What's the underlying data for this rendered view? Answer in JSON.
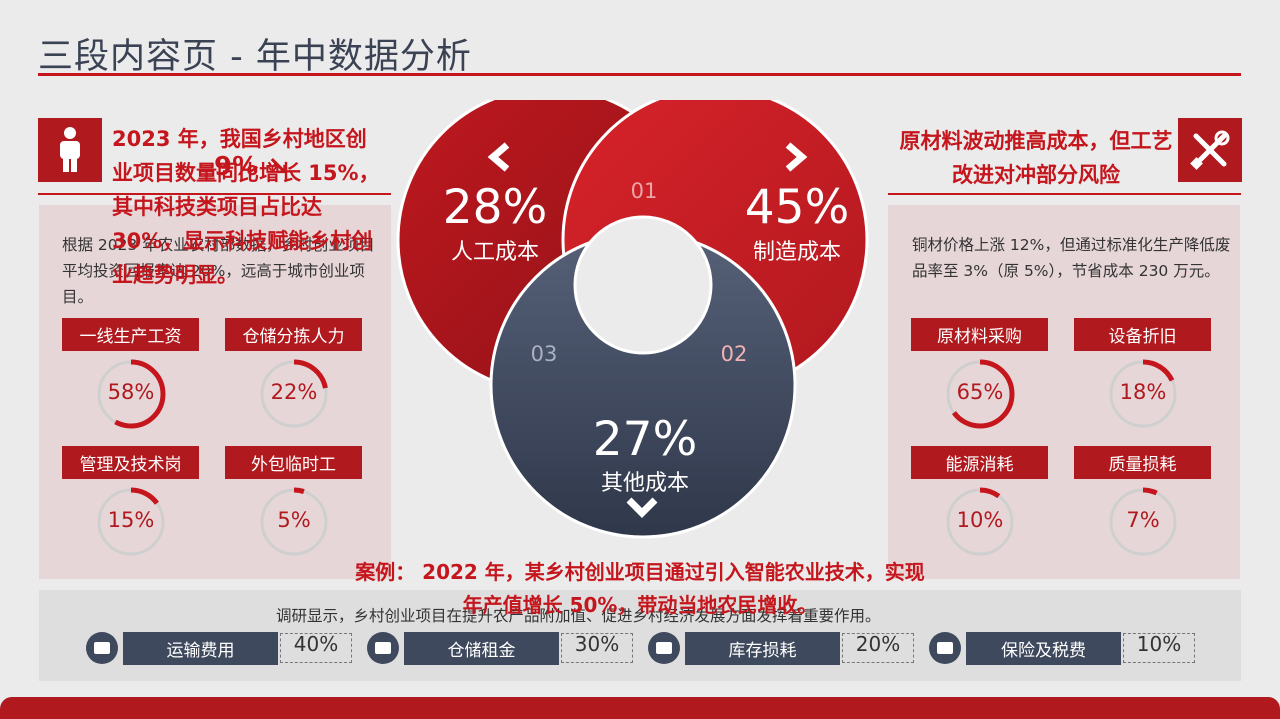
{
  "page": {
    "title": "三段内容页 - 年中数据分析"
  },
  "left": {
    "headline": "2023 年，我国乡村地区创业项目数量同比增长 15%，其中科技类项目占比达 30%，显示科技赋能乡村创业趋势明显。",
    "overlay_stat": "9% ↘",
    "body": "根据 2023 年农业农村部数据，乡村创业项目平均投资回报率达 20%，远高于城市创业项目。",
    "items": [
      {
        "label": "一线生产工资",
        "value": "58%",
        "pct": 58
      },
      {
        "label": "仓储分拣人力",
        "value": "22%",
        "pct": 22
      },
      {
        "label": "管理及技术岗",
        "value": "15%",
        "pct": 15
      },
      {
        "label": "外包临时工",
        "value": "5%",
        "pct": 5
      }
    ]
  },
  "right": {
    "headline": "原材料波动推高成本，但工艺改进对冲部分风险",
    "body": "铜材价格上涨 12%，但通过标准化生产降低废品率至 3%（原 5%），节省成本 230 万元。",
    "items": [
      {
        "label": "原材料采购",
        "value": "65%",
        "pct": 65
      },
      {
        "label": "设备折旧",
        "value": "18%",
        "pct": 18
      },
      {
        "label": "能源消耗",
        "value": "10%",
        "pct": 10
      },
      {
        "label": "质量损耗",
        "value": "7%",
        "pct": 7
      }
    ]
  },
  "venn": {
    "a": {
      "value": "28%",
      "label": "人工成本",
      "num": "01"
    },
    "b": {
      "value": "45%",
      "label": "制造成本",
      "num": "02"
    },
    "c": {
      "value": "27%",
      "label": "其他成本",
      "num": "03"
    }
  },
  "case": {
    "text": "案例： 2022 年，某乡村创业项目通过引入智能农业技术，实现年产值增长 50%，带动当地农民增收。"
  },
  "bottom": {
    "note": "调研显示，乡村创业项目在提升农产品附加值、促进乡村经济发展方面发挥着重要作用。",
    "items": [
      {
        "label": "运输费用",
        "value": "40%"
      },
      {
        "label": "仓储租金",
        "value": "30%"
      },
      {
        "label": "库存损耗",
        "value": "20%"
      },
      {
        "label": "保险及税费",
        "value": "10%"
      }
    ]
  },
  "colors": {
    "accent_red": "#c4161c",
    "dark_red": "#9d1419",
    "navy": "#3f495d"
  },
  "icons": {
    "left_header": "person-icon",
    "right_header": "tools-icon",
    "venn_a": "chevron-left-icon",
    "venn_b": "chevron-right-icon",
    "venn_c": "chevron-down-icon"
  }
}
